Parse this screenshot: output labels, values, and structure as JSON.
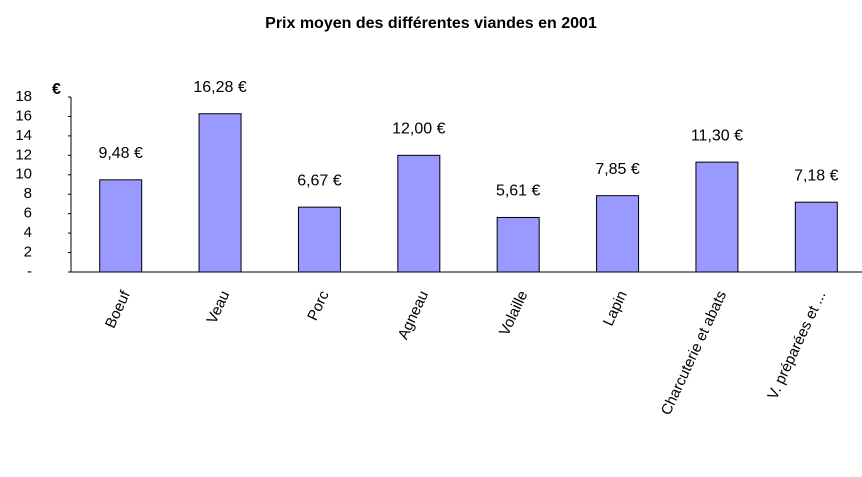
{
  "chart_data": {
    "type": "bar",
    "title": "Prix moyen des différentes viandes en 2001",
    "y_label": "€",
    "categories": [
      "Boeuf",
      "Veau",
      "Porc",
      "Agneau",
      "Volaille",
      "Lapin",
      "Charcuterie et abats",
      "V. préparées et ..."
    ],
    "values": [
      9.48,
      16.28,
      6.67,
      12.0,
      5.61,
      7.85,
      11.3,
      7.18
    ],
    "value_labels": [
      "9,48 €",
      "16,28 €",
      "6,67 €",
      "12,00 €",
      "5,61 €",
      "7,85 €",
      "11,30 €",
      "7,18 €"
    ],
    "color": "#9999ff",
    "ylim": [
      0,
      18
    ],
    "yticks": [
      {
        "value": 0,
        "label": "-"
      },
      2,
      4,
      6,
      8,
      10,
      12,
      14,
      16,
      18
    ],
    "grid": false
  }
}
